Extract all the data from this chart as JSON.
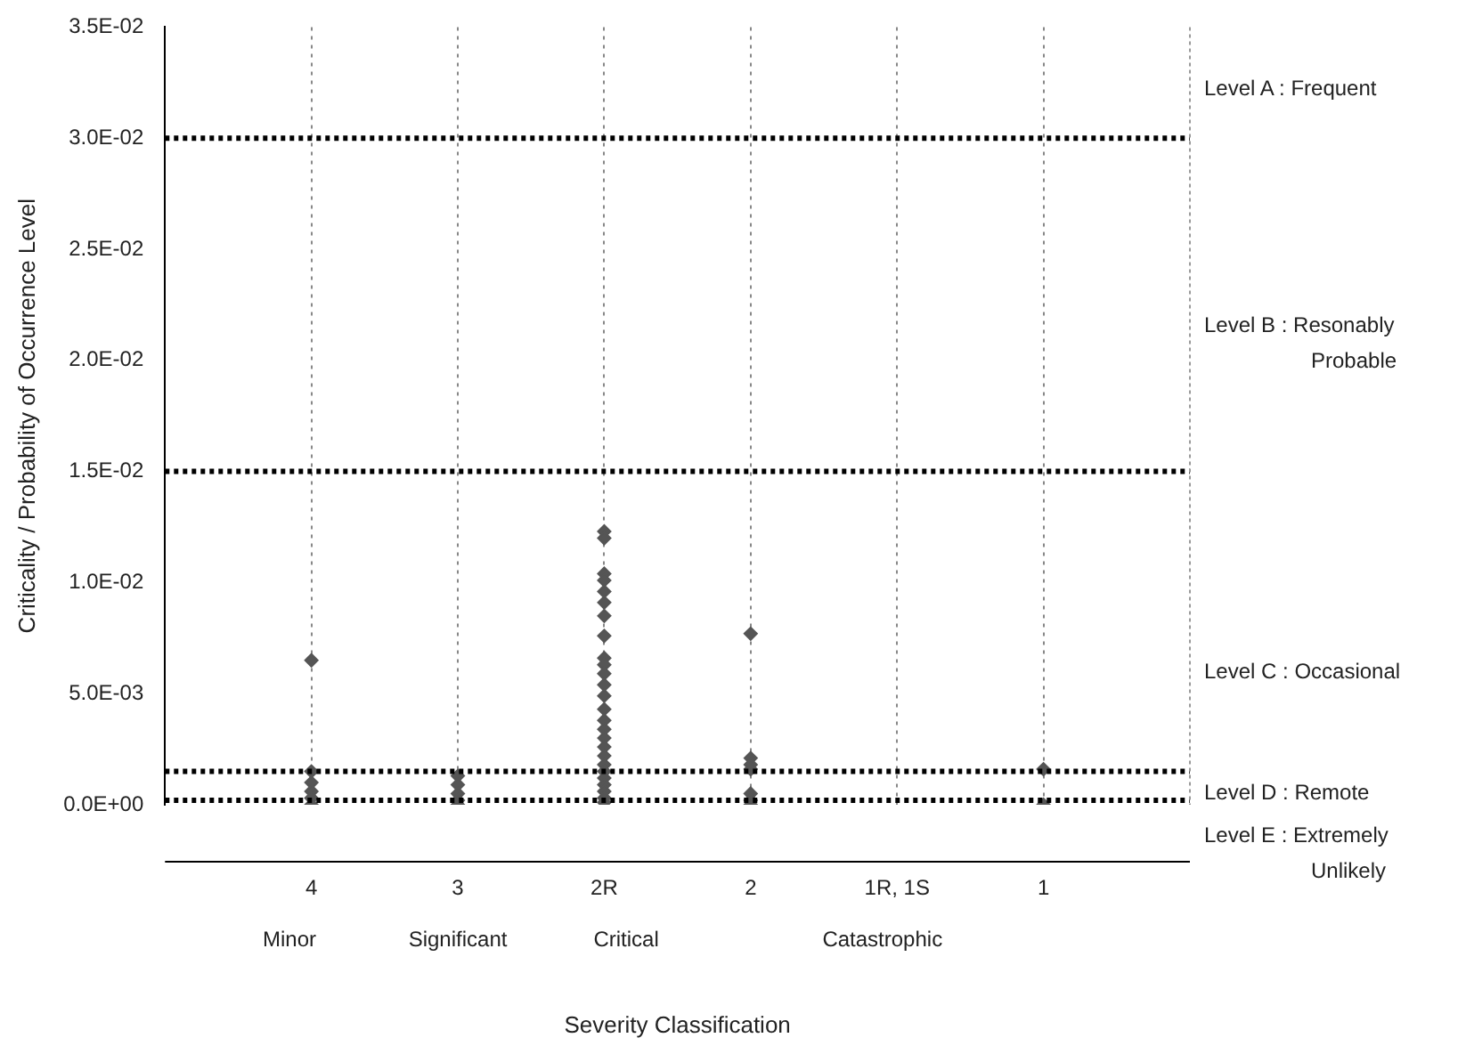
{
  "chart_data": {
    "type": "scatter",
    "xlabel": "Severity Classification",
    "ylabel": "Criticality / Probability of Occurrence Level",
    "categories": [
      "4",
      "3",
      "2R",
      "2",
      "1R, 1S",
      "1"
    ],
    "series": [
      {
        "color": "#555555",
        "x": [
          "4",
          "4",
          "4",
          "4",
          "4",
          "4",
          "3",
          "3",
          "3",
          "3",
          "3",
          "2R",
          "2R",
          "2R",
          "2R",
          "2R",
          "2R",
          "2R",
          "2R",
          "2R",
          "2R",
          "2R",
          "2R",
          "2R",
          "2R",
          "2R",
          "2R",
          "2R",
          "2R",
          "2R",
          "2R",
          "2R",
          "2R",
          "2R",
          "2R",
          "2R",
          "2R",
          "2",
          "2",
          "2",
          "2",
          "2",
          "2",
          "2",
          "1",
          "1"
        ],
        "values": [
          0.0065,
          0.0015,
          0.001,
          0.0006,
          0.0003,
          0,
          0.0013,
          0.0009,
          0.0005,
          0.0002,
          0,
          0.0123,
          0.012,
          0.0104,
          0.0101,
          0.0096,
          0.0091,
          0.0085,
          0.0076,
          0.0066,
          0.0063,
          0.0059,
          0.0054,
          0.0049,
          0.0043,
          0.0038,
          0.0034,
          0.003,
          0.0026,
          0.0022,
          0.0018,
          0.0015,
          0.0012,
          0.0009,
          0.0006,
          0.0003,
          0.0001,
          0.0077,
          0.0021,
          0.0018,
          0.0016,
          0.0005,
          0.0002,
          0,
          0.0016,
          0
        ]
      }
    ],
    "ylim": [
      0,
      0.035
    ],
    "yticks": [
      {
        "value": 0,
        "label": "0.0E+00"
      },
      {
        "value": 0.005,
        "label": "5.0E-03"
      },
      {
        "value": 0.01,
        "label": "1.0E-02"
      },
      {
        "value": 0.015,
        "label": "1.5E-02"
      },
      {
        "value": 0.02,
        "label": "2.0E-02"
      },
      {
        "value": 0.025,
        "label": "2.5E-02"
      },
      {
        "value": 0.03,
        "label": "3.0E-02"
      },
      {
        "value": 0.035,
        "label": "3.5E-02"
      }
    ],
    "ref_lines": [
      {
        "axis": "y",
        "value": 0.03,
        "color": "#000000",
        "line_style": "dotted"
      },
      {
        "axis": "y",
        "value": 0.015,
        "color": "#000000",
        "line_style": "dotted"
      },
      {
        "axis": "y",
        "value": 0.0015,
        "color": "#000000",
        "line_style": "dotted"
      },
      {
        "axis": "y",
        "value": 0.0002,
        "color": "#000000",
        "line_style": "dotted"
      }
    ],
    "annotations": [
      "Level A : Frequent",
      "Level B : Resonably\nProbable",
      "Level C : Occasional",
      "Level D : Remote",
      "Level E : Extremely\nUnlikely",
      "Minor",
      "Significant",
      "Critical",
      "Catastrophic"
    ],
    "grid": "x",
    "legend": false,
    "marker": "diamond"
  }
}
